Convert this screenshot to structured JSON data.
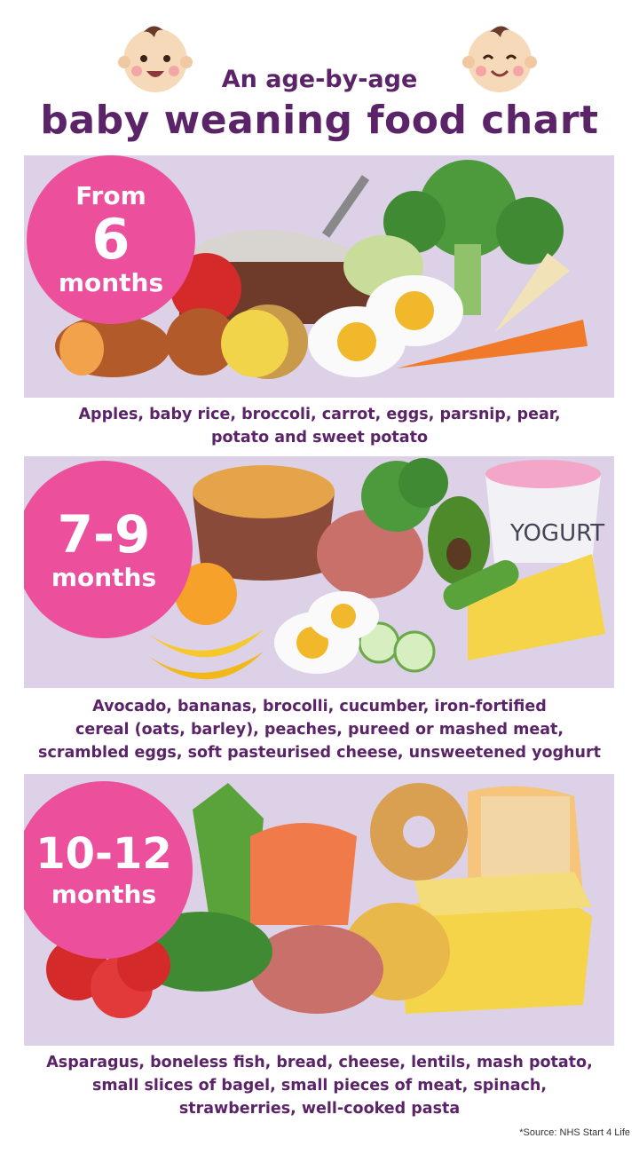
{
  "header": {
    "subtitle": "An age-by-age",
    "title": "baby weaning food chart",
    "icons": [
      "baby-face-left",
      "baby-face-right"
    ]
  },
  "colors": {
    "text": "#5b2468",
    "panel": "#dcd1e6",
    "badge": "#ec509c"
  },
  "sections": [
    {
      "badge_top": "From",
      "badge_number": "6",
      "badge_bottom": "months",
      "caption_lines": [
        "Apples, baby rice, broccoli, carrot, eggs, parsnip, pear,",
        "potato and sweet potato"
      ]
    },
    {
      "badge_number": "7-9",
      "badge_bottom": "months",
      "yogurt_label": "YOGURT",
      "caption_lines": [
        "Avocado, bananas, brocolli, cucumber, iron-fortified",
        "cereal (oats, barley), peaches, pureed or mashed meat,",
        "scrambled eggs, soft pasteurised cheese, unsweetened yoghurt"
      ]
    },
    {
      "badge_number": "10-12",
      "badge_bottom": "months",
      "caption_lines": [
        "Asparagus, boneless fish, bread, cheese, lentils, mash potato,",
        "small slices of bagel, small pieces of meat, spinach,",
        "strawberries, well-cooked pasta"
      ]
    }
  ],
  "footer": {
    "source": "*Source: NHS Start 4 Life"
  }
}
